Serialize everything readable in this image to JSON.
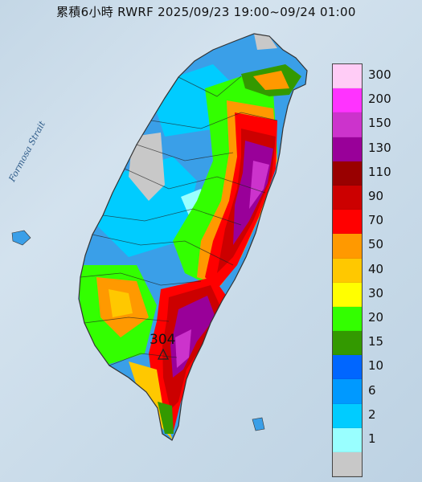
{
  "title": "累積6小時 RWRF 2025/09/23 19:00~09/24 01:00",
  "strait_label": "Formosa Strait",
  "max_value": "304",
  "legend": [
    {
      "label": "300",
      "color": "#ffccf6"
    },
    {
      "label": "200",
      "color": "#ff33ff"
    },
    {
      "label": "150",
      "color": "#cc33cc"
    },
    {
      "label": "130",
      "color": "#990099"
    },
    {
      "label": "110",
      "color": "#990000"
    },
    {
      "label": "90",
      "color": "#cc0000"
    },
    {
      "label": "70",
      "color": "#ff0000"
    },
    {
      "label": "50",
      "color": "#ff9900"
    },
    {
      "label": "40",
      "color": "#ffc800"
    },
    {
      "label": "30",
      "color": "#ffff00"
    },
    {
      "label": "20",
      "color": "#33ff00"
    },
    {
      "label": "15",
      "color": "#339900"
    },
    {
      "label": "10",
      "color": "#0066ff"
    },
    {
      "label": "6",
      "color": "#0099ff"
    },
    {
      "label": "2",
      "color": "#00ccff"
    },
    {
      "label": "1",
      "color": "#99ffff"
    },
    {
      "label": "",
      "color": "#c8c8c8"
    }
  ],
  "marker_icon": "triangle-max-icon"
}
